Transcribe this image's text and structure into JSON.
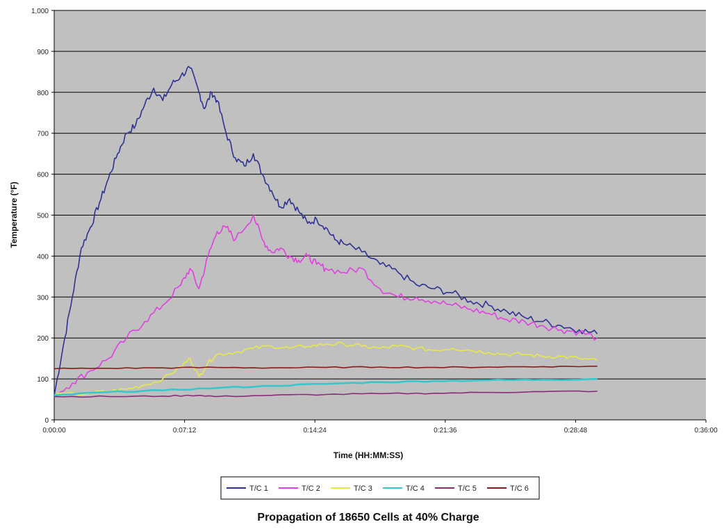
{
  "chart_data": {
    "type": "line",
    "title": "Propagation of 18650 Cells at 40% Charge",
    "xlabel": "Time (HH:MM:SS)",
    "ylabel": "Temperature (°F)",
    "x_unit": "minutes",
    "xlim": [
      0,
      36
    ],
    "ylim": [
      0,
      1000
    ],
    "x_ticks": [
      0,
      7.2,
      14.4,
      21.6,
      28.8,
      36
    ],
    "x_tick_labels": [
      "0:00:00",
      "0:07:12",
      "0:14:24",
      "0:21:36",
      "0:28:48",
      "0:36:00"
    ],
    "y_ticks": [
      0,
      100,
      200,
      300,
      400,
      500,
      600,
      700,
      800,
      900,
      1000
    ],
    "y_tick_labels": [
      "0",
      "100",
      "200",
      "300",
      "400",
      "500",
      "600",
      "700",
      "800",
      "900",
      "1,000"
    ],
    "grid": "horizontal",
    "plot_background": "#c0c0c0",
    "legend_position": "bottom",
    "series": [
      {
        "name": "T/C 1",
        "color": "#2e3192",
        "x": [
          0,
          0.5,
          1,
          1.5,
          2,
          2.5,
          3,
          3.5,
          4,
          4.5,
          5,
          5.5,
          6,
          6.5,
          7,
          7.5,
          8,
          8.3,
          8.7,
          9,
          9.5,
          10,
          10.5,
          11,
          11.5,
          12,
          12.5,
          13,
          13.5,
          14,
          14.5,
          15,
          15.5,
          16,
          17,
          18,
          19,
          20,
          21,
          22,
          23,
          24,
          25,
          26,
          27,
          28,
          29,
          30
        ],
        "y": [
          60,
          180,
          300,
          420,
          470,
          530,
          590,
          650,
          700,
          720,
          770,
          810,
          780,
          820,
          840,
          860,
          800,
          760,
          800,
          780,
          700,
          640,
          620,
          650,
          600,
          560,
          520,
          540,
          510,
          480,
          490,
          470,
          440,
          430,
          410,
          380,
          360,
          330,
          320,
          310,
          290,
          280,
          265,
          250,
          240,
          230,
          220,
          210
        ]
      },
      {
        "name": "T/C 2",
        "color": "#e040e0",
        "x": [
          0,
          1,
          2,
          3,
          4,
          5,
          6,
          7,
          7.5,
          8,
          8.5,
          9,
          9.5,
          10,
          11,
          11.5,
          12,
          12.5,
          13,
          13.5,
          14,
          14.5,
          15,
          16,
          17,
          18,
          19,
          20,
          21,
          22,
          23,
          24,
          25,
          26,
          27,
          28,
          29,
          30
        ],
        "y": [
          60,
          90,
          120,
          150,
          200,
          240,
          280,
          330,
          370,
          320,
          400,
          460,
          470,
          440,
          500,
          440,
          410,
          420,
          400,
          390,
          400,
          380,
          370,
          360,
          370,
          320,
          300,
          300,
          290,
          280,
          270,
          260,
          245,
          240,
          230,
          220,
          215,
          200
        ]
      },
      {
        "name": "T/C 3",
        "color": "#e8e84a",
        "x": [
          0,
          2,
          3,
          4,
          5,
          6,
          7,
          7.5,
          8,
          8.5,
          9,
          10,
          11,
          12,
          13,
          14,
          15,
          16,
          17,
          18,
          19,
          20,
          21,
          22,
          23,
          24,
          25,
          26,
          27,
          28,
          29,
          30
        ],
        "y": [
          60,
          65,
          70,
          75,
          85,
          100,
          130,
          150,
          105,
          140,
          160,
          165,
          175,
          180,
          175,
          180,
          185,
          185,
          180,
          175,
          180,
          175,
          170,
          175,
          170,
          165,
          160,
          160,
          155,
          155,
          150,
          145
        ]
      },
      {
        "name": "T/C 4",
        "color": "#33c9cc",
        "x": [
          0,
          3,
          6,
          9,
          12,
          15,
          18,
          21,
          24,
          27,
          30
        ],
        "y": [
          60,
          68,
          72,
          78,
          83,
          88,
          92,
          95,
          97,
          98,
          100
        ]
      },
      {
        "name": "T/C 5",
        "color": "#8a2b7a",
        "x": [
          0,
          3,
          6,
          8,
          9,
          12,
          15,
          18,
          21,
          24,
          27,
          30
        ],
        "y": [
          57,
          57,
          58,
          60,
          57,
          60,
          62,
          64,
          65,
          67,
          69,
          70
        ]
      },
      {
        "name": "T/C 6",
        "color": "#8b1a1a",
        "x": [
          0,
          3,
          6,
          9,
          12,
          15,
          18,
          21,
          24,
          27,
          30
        ],
        "y": [
          125,
          126,
          127,
          128,
          127,
          128,
          129,
          128,
          129,
          130,
          131
        ]
      }
    ]
  }
}
